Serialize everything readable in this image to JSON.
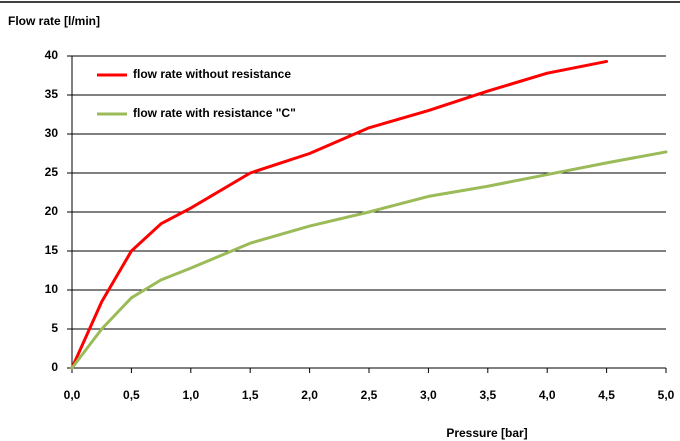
{
  "chart_data": {
    "type": "line",
    "y_label": "Flow rate [l/min]",
    "x_label": "Pressure [bar]",
    "xlim": [
      0,
      5
    ],
    "xticks": [
      {
        "value": 0,
        "label": "0,0"
      },
      {
        "value": 0.5,
        "label": "0,5"
      },
      {
        "value": 1,
        "label": "1,0"
      },
      {
        "value": 1.5,
        "label": "1,5"
      },
      {
        "value": 2,
        "label": "2,0"
      },
      {
        "value": 2.5,
        "label": "2,5"
      },
      {
        "value": 3,
        "label": "3,0"
      },
      {
        "value": 3.5,
        "label": "3,5"
      },
      {
        "value": 4,
        "label": "4,0"
      },
      {
        "value": 4.5,
        "label": "4,5"
      },
      {
        "value": 5,
        "label": "5,0"
      }
    ],
    "ylim": [
      0,
      40
    ],
    "yticks": [
      0,
      5,
      10,
      15,
      20,
      25,
      30,
      35,
      40
    ],
    "grid": true,
    "legend": "upper left",
    "series": [
      {
        "name": "flow rate without resistance",
        "color": "#ff0000",
        "x": [
          0,
          0.25,
          0.5,
          0.75,
          1,
          1.5,
          2,
          2.5,
          3,
          3.5,
          4,
          4.5
        ],
        "values": [
          0,
          8.5,
          15,
          18.5,
          20.5,
          25,
          27.5,
          30.8,
          33,
          35.5,
          37.8,
          39.3
        ]
      },
      {
        "name": "flow rate with resistance \"C\"",
        "color": "#9bbb59",
        "x": [
          0,
          0.25,
          0.5,
          0.75,
          1,
          1.5,
          2,
          2.5,
          3,
          3.5,
          4,
          4.5,
          5
        ],
        "values": [
          0,
          5,
          9,
          11.3,
          12.8,
          16,
          18.2,
          20,
          22,
          23.3,
          24.8,
          26.3,
          27.7
        ]
      }
    ]
  }
}
